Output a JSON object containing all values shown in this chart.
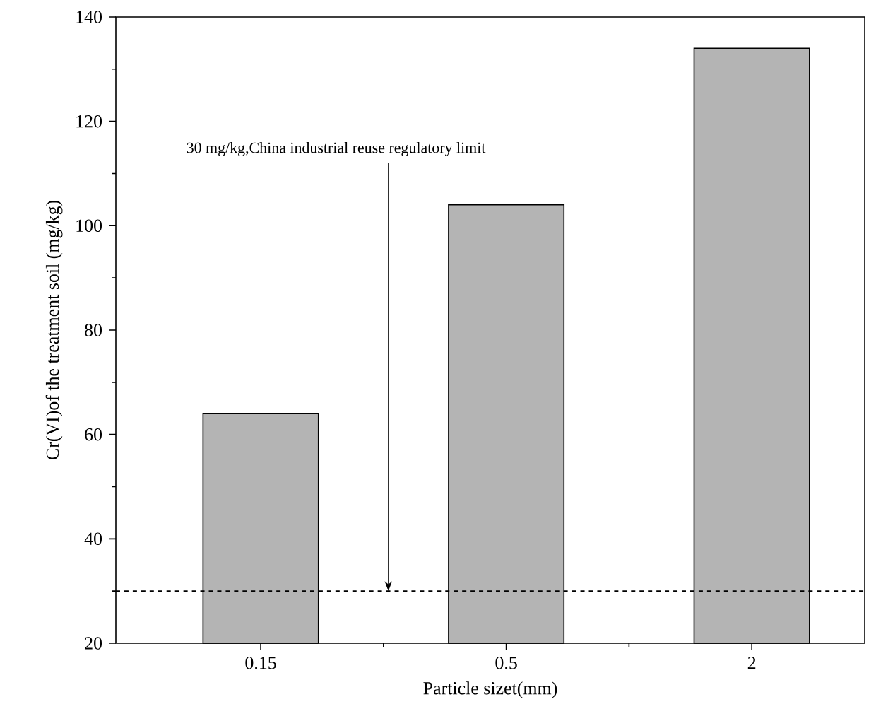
{
  "chart_data": {
    "type": "bar",
    "xlabel": "Particle sizet(mm)",
    "ylabel": "Cr(VI)of the treatment soil (mg/kg)",
    "categories": [
      "0.15",
      "0.5",
      "2"
    ],
    "values": [
      64,
      104,
      134
    ],
    "color": "#b4b4b4",
    "ylim": [
      20,
      140
    ],
    "yticks": [
      20,
      40,
      60,
      80,
      100,
      120,
      140
    ],
    "ref_lines": [
      {
        "axis": "y",
        "value": 30,
        "label": "30 mg/kg,China industrial reuse regulatory limit",
        "line_style": "dashed"
      }
    ],
    "grid": false
  }
}
